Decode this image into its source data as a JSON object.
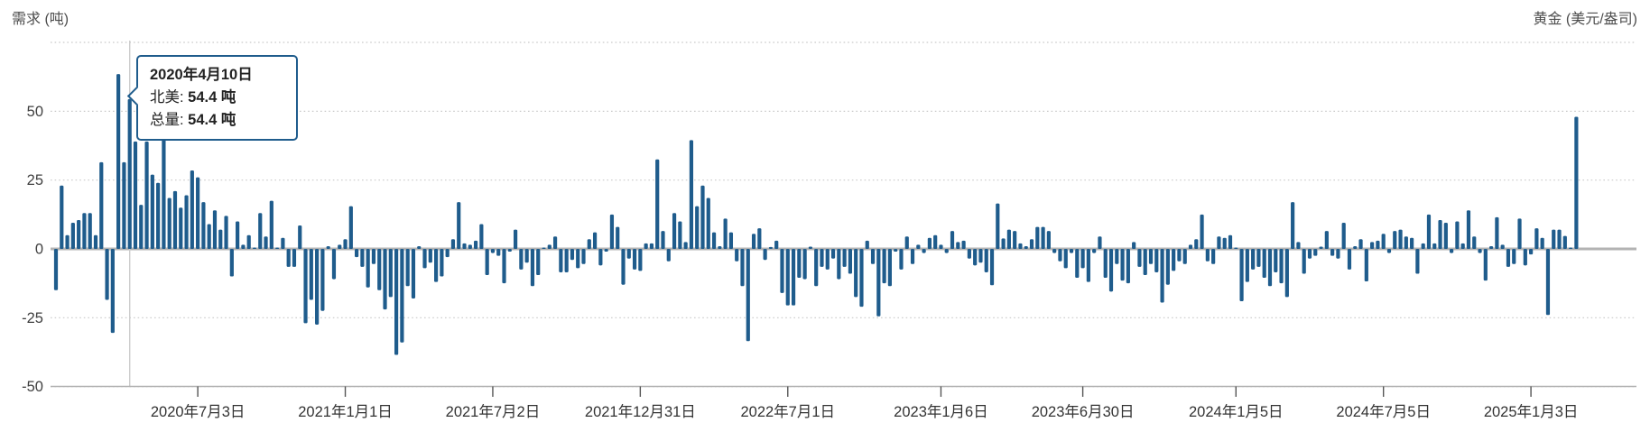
{
  "header": {
    "left_axis_title": "需求 (吨)",
    "right_axis_title": "黄金 (美元/盎司)"
  },
  "tooltip": {
    "date": "2020年4月10日",
    "rows": [
      {
        "label": "北美: ",
        "value": "54.4 吨"
      },
      {
        "label": "总量: ",
        "value": "54.4 吨"
      }
    ],
    "anchor_index": 13
  },
  "chart_data": {
    "type": "bar",
    "title": "",
    "xlabel": "",
    "ylabel": "需求 (吨)",
    "secondary_ylabel": "黄金 (美元/盎司)",
    "legend_position": "none",
    "grid": "dotted horizontal",
    "ylim": [
      -50,
      75
    ],
    "yticks": [
      50,
      25,
      0,
      -25,
      -50
    ],
    "grid_levels": [
      75,
      50,
      25,
      0,
      -25,
      -50
    ],
    "bar_color": "#1f5c8c",
    "zero_line_color": "#b3b3b3",
    "gridline_color": "#c9c9c9",
    "crosshair_color": "#cccccc",
    "x_unit": "week",
    "x_ticks": [
      {
        "index": 25,
        "label": "2020年7月3日"
      },
      {
        "index": 51,
        "label": "2021年1月1日"
      },
      {
        "index": 77,
        "label": "2021年7月2日"
      },
      {
        "index": 103,
        "label": "2021年12月31日"
      },
      {
        "index": 129,
        "label": "2022年7月1日"
      },
      {
        "index": 156,
        "label": "2023年1月6日"
      },
      {
        "index": 181,
        "label": "2023年6月30日"
      },
      {
        "index": 208,
        "label": "2024年1月5日"
      },
      {
        "index": 234,
        "label": "2024年7月5日"
      },
      {
        "index": 260,
        "label": "2025年1月3日"
      }
    ],
    "highlight": {
      "index": 13,
      "date": "2020年4月10日",
      "value": 54.4
    },
    "values": [
      -15,
      23,
      5,
      9.5,
      10.5,
      13,
      13,
      5,
      31.5,
      -18.5,
      -30.5,
      63.5,
      31.5,
      54.4,
      39,
      16,
      39,
      27,
      24,
      40,
      18.5,
      21,
      15,
      19.5,
      28.5,
      26,
      17,
      9,
      14,
      7,
      12,
      -10,
      10,
      1.5,
      5,
      0.5,
      13,
      4.5,
      17.5,
      0.5,
      4,
      -6.5,
      -6.5,
      8.5,
      -27,
      -18.5,
      -27.5,
      -22.5,
      1,
      -11,
      1.5,
      3.5,
      15.5,
      -3,
      -6.5,
      -14,
      -5.5,
      -15,
      -22,
      -17.5,
      -38.5,
      -34,
      -13.5,
      -18,
      1,
      -7,
      -5,
      -12,
      -10,
      -3,
      3.5,
      17,
      2,
      1.5,
      3,
      9,
      -9.5,
      -1.5,
      -2.5,
      -12.5,
      -1,
      7,
      -7.5,
      -5,
      -13.5,
      -9.5,
      0.5,
      1.5,
      4.5,
      -8.5,
      -8.5,
      -4,
      -7,
      -5.5,
      3.5,
      6,
      -6,
      -1,
      12.5,
      8,
      -13,
      -3.5,
      -7.5,
      -8,
      2,
      2,
      32.5,
      6.5,
      -4.5,
      13,
      10,
      2.5,
      39.5,
      15.5,
      23,
      18.5,
      6,
      1,
      11,
      6,
      -4.5,
      -13.5,
      -33.5,
      5.5,
      7.5,
      -4,
      0.7,
      3,
      -16,
      -20.5,
      -20.5,
      -10.5,
      -11,
      0.8,
      -13.5,
      -6.5,
      -7.5,
      -3.5,
      -11,
      -6.5,
      -9,
      -17.5,
      -21,
      3,
      -5.5,
      -24.5,
      -12.5,
      -13.5,
      -1,
      -7.5,
      4.5,
      -5.5,
      1.5,
      -1.5,
      4,
      5,
      1.5,
      -1.5,
      6.5,
      2.5,
      3,
      -3.5,
      -6,
      -5,
      -8.5,
      -13.2,
      16.5,
      3.8,
      7,
      6.5,
      2,
      1,
      3.5,
      8,
      8,
      6.5,
      -1.5,
      -4.5,
      -7,
      -1.5,
      -10.5,
      -7,
      -12,
      -1.5,
      4.5,
      -10.5,
      -15.5,
      -5.5,
      -11.5,
      -12.5,
      2.5,
      -6.5,
      -9.5,
      -5.5,
      -8.5,
      -19.5,
      -13,
      -8,
      -4.5,
      -5.5,
      1.5,
      3.5,
      12.5,
      -4.5,
      -5.5,
      4.5,
      4,
      5,
      0.5,
      -19,
      -12,
      -7.5,
      -6.5,
      -10.5,
      -13.5,
      -8.5,
      -12.5,
      -17.5,
      17,
      2.5,
      -9,
      -3.5,
      -2.5,
      0.8,
      6.5,
      -2.5,
      -3.5,
      9.5,
      -7.5,
      1,
      3.5,
      -11.8,
      2.5,
      3,
      5.5,
      -1.5,
      6.5,
      7,
      4.5,
      4,
      -9,
      2,
      12.5,
      2,
      10.5,
      9.5,
      -1.5,
      10,
      2,
      14,
      4.5,
      -1.5,
      -11.5,
      1,
      11.5,
      1.5,
      -6.5,
      -5.5,
      11,
      -6,
      -2,
      7.5,
      4,
      -24,
      7,
      7,
      4.7,
      0.5,
      48
    ]
  }
}
